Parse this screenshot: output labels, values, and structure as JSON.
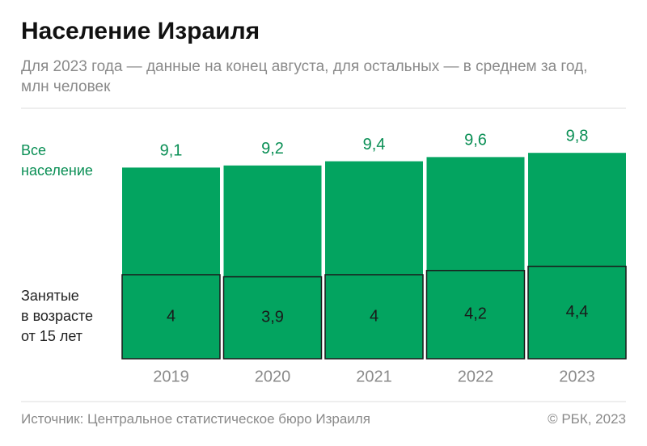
{
  "chart_data": {
    "type": "bar",
    "title": "Население Израиля",
    "subtitle": "Для 2023 года — данные на конец августа, для остальных — в среднем за год, млн человек",
    "categories": [
      "2019",
      "2020",
      "2021",
      "2022",
      "2023"
    ],
    "series": [
      {
        "name": "Все\nнаселение",
        "color": "#03a460",
        "values": [
          9.1,
          9.2,
          9.4,
          9.6,
          9.8
        ],
        "value_labels": [
          "9,1",
          "9,2",
          "9,4",
          "9,6",
          "9,8"
        ]
      },
      {
        "name": "Занятые\nв возрасте\nот 15 лет",
        "color": "#03a460",
        "values": [
          4,
          3.9,
          4,
          4.2,
          4.4
        ],
        "value_labels": [
          "4",
          "3,9",
          "4",
          "4,2",
          "4,4"
        ]
      }
    ],
    "source": "Источник: Центральное статистическое бюро Израиля",
    "copyright": "© РБК, 2023"
  }
}
